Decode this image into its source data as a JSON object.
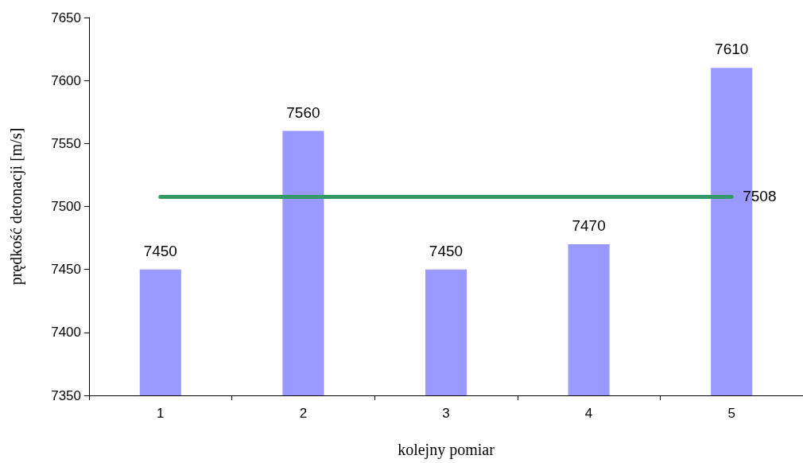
{
  "chart_data": {
    "type": "bar",
    "xlabel": "kolejny pomiar",
    "ylabel": "prędkość detonacji [m/s]",
    "categories": [
      "1",
      "2",
      "3",
      "4",
      "5"
    ],
    "values": [
      7450,
      7560,
      7450,
      7470,
      7610
    ],
    "color": "#9999ff",
    "ylim": [
      7350,
      7650
    ],
    "yticks": [
      7350,
      7400,
      7450,
      7500,
      7550,
      7600,
      7650
    ],
    "grid": false,
    "data_labels": true,
    "ref_lines": [
      {
        "axis": "y",
        "value": 7508,
        "label": "7508",
        "color": "#339966",
        "line_style": "solid"
      }
    ]
  }
}
